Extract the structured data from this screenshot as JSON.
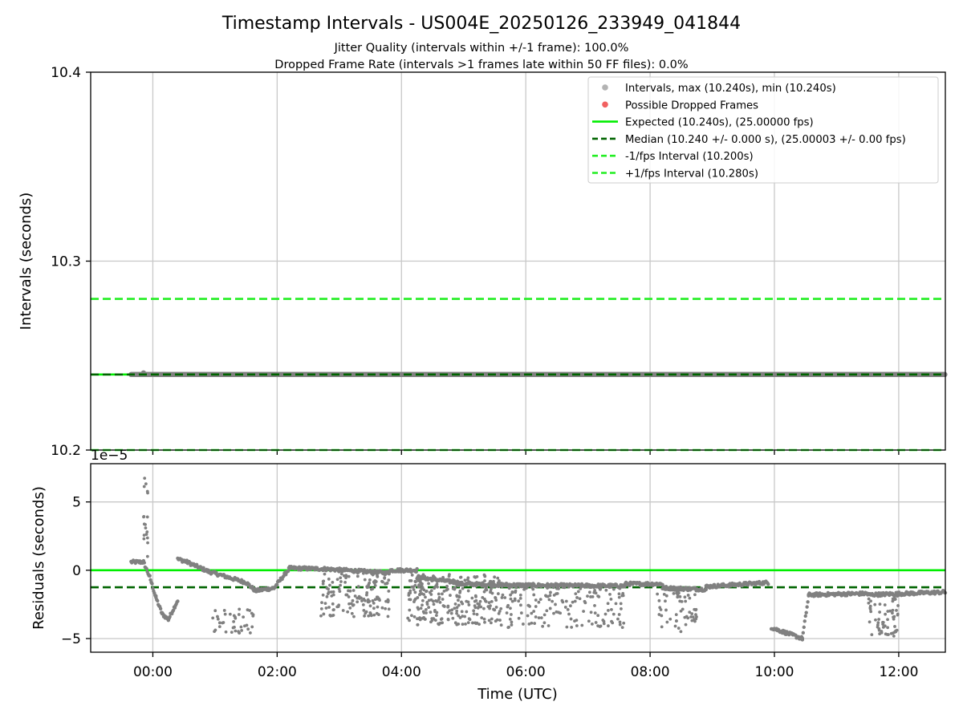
{
  "title": "Timestamp Intervals - US004E_20250126_233949_041844",
  "subtitle_lines": [
    "Jitter Quality (intervals within +/-1 frame): 100.0%",
    "Dropped Frame Rate (intervals >1 frames late within 50 FF files): 0.0%"
  ],
  "xlabel": "Time (UTC)",
  "colors": {
    "points": "#808080",
    "dropped": "#f05050",
    "expected": "#00ee00",
    "median": "#006400",
    "bounds": "#22ee22",
    "grid": "#c8c8c8"
  },
  "chart_data": [
    {
      "type": "scatter",
      "panel": "intervals",
      "ylabel": "Intervals (seconds)",
      "ylim": [
        10.2,
        10.4
      ],
      "yticks": [
        10.2,
        10.3,
        10.4
      ],
      "ytick_labels": [
        "10.2",
        "10.3",
        "10.4"
      ],
      "xlim_hours": [
        -1.0,
        12.75
      ],
      "xticks": [
        "00:00",
        "02:00",
        "04:00",
        "06:00",
        "08:00",
        "10:00",
        "12:00"
      ],
      "xtick_hours": [
        0,
        2,
        4,
        6,
        8,
        10,
        12
      ],
      "grid": true,
      "legend_position": "top-right",
      "series": [
        {
          "name": "Intervals, max (10.240s), min (10.240s)",
          "kind": "points",
          "x_range_hours": [
            -0.35,
            12.75
          ],
          "value": 10.24
        },
        {
          "name": "Possible Dropped Frames",
          "kind": "points",
          "values": []
        },
        {
          "name": "Expected (10.240s), (25.00000 fps)",
          "kind": "hline",
          "value": 10.24
        },
        {
          "name": "Median (10.240 +/- 0.000 s), (25.00003 +/- 0.00 fps)",
          "kind": "hline",
          "value": 10.24
        },
        {
          "name": "-1/fps Interval (10.200s)",
          "kind": "hline",
          "value": 10.2
        },
        {
          "name": "+1/fps Interval (10.280s)",
          "kind": "hline",
          "value": 10.28
        }
      ]
    },
    {
      "type": "scatter",
      "panel": "residuals",
      "ylabel": "Residuals (seconds)",
      "y_scale_label": "1e−5",
      "unit_scale": 1e-05,
      "ylim": [
        -6,
        7.8
      ],
      "yticks": [
        -5,
        0,
        5
      ],
      "ytick_labels": [
        "−5",
        "0",
        "5"
      ],
      "xlim_hours": [
        -1.0,
        12.75
      ],
      "xticks": [
        "00:00",
        "02:00",
        "04:00",
        "06:00",
        "08:00",
        "10:00",
        "12:00"
      ],
      "xtick_hours": [
        0,
        2,
        4,
        6,
        8,
        10,
        12
      ],
      "grid": true,
      "expected_line": 0,
      "median_line": -1.25,
      "baseline_segments": [
        {
          "x": [
            -0.35,
            -0.15
          ],
          "y": [
            0.6,
            0.6
          ]
        },
        {
          "x": [
            -0.15,
            -0.05
          ],
          "y": [
            0.6,
            -0.5
          ]
        },
        {
          "x": [
            -0.05,
            0.05
          ],
          "y": [
            -0.5,
            -2.0
          ]
        },
        {
          "x": [
            0.05,
            0.15
          ],
          "y": [
            -2.0,
            -3.2
          ]
        },
        {
          "x": [
            0.15,
            0.25
          ],
          "y": [
            -3.2,
            -3.6
          ]
        },
        {
          "x": [
            0.25,
            0.4
          ],
          "y": [
            -3.6,
            -2.2
          ]
        },
        {
          "x": [
            0.4,
            0.5
          ],
          "y": [
            0.8,
            0.7
          ]
        },
        {
          "x": [
            0.5,
            0.9
          ],
          "y": [
            0.7,
            -0.1
          ]
        },
        {
          "x": [
            0.9,
            1.5
          ],
          "y": [
            -0.1,
            -0.9
          ]
        },
        {
          "x": [
            1.5,
            1.65
          ],
          "y": [
            -0.9,
            -1.5
          ]
        },
        {
          "x": [
            1.65,
            1.95
          ],
          "y": [
            -1.5,
            -1.3
          ]
        },
        {
          "x": [
            1.95,
            2.2
          ],
          "y": [
            -1.3,
            0.15
          ]
        },
        {
          "x": [
            2.2,
            2.75
          ],
          "y": [
            0.15,
            0.1
          ]
        },
        {
          "x": [
            2.75,
            3.8
          ],
          "y": [
            0.1,
            -0.2
          ]
        },
        {
          "x": [
            3.8,
            4.25
          ],
          "y": [
            0.0,
            0.0
          ]
        },
        {
          "x": [
            4.25,
            4.9
          ],
          "y": [
            -0.5,
            -0.9
          ]
        },
        {
          "x": [
            4.9,
            6.0
          ],
          "y": [
            -1.0,
            -1.1
          ]
        },
        {
          "x": [
            6.0,
            7.6
          ],
          "y": [
            -1.1,
            -1.15
          ]
        },
        {
          "x": [
            7.6,
            8.2
          ],
          "y": [
            -1.0,
            -1.0
          ]
        },
        {
          "x": [
            8.2,
            8.9
          ],
          "y": [
            -1.3,
            -1.4
          ]
        },
        {
          "x": [
            8.9,
            9.9
          ],
          "y": [
            -1.2,
            -0.9
          ]
        },
        {
          "x": [
            9.95,
            10.45
          ],
          "y": [
            -4.2,
            -5.0
          ]
        },
        {
          "x": [
            10.45,
            10.55
          ],
          "y": [
            -5.0,
            -1.9
          ]
        },
        {
          "x": [
            10.55,
            11.5
          ],
          "y": [
            -1.8,
            -1.7
          ]
        },
        {
          "x": [
            11.5,
            12.75
          ],
          "y": [
            -1.8,
            -1.6
          ]
        }
      ],
      "outlier_clusters": [
        {
          "x": [
            -0.15,
            -0.08
          ],
          "y": [
            0.5,
            7.0
          ],
          "n": 18
        },
        {
          "x": [
            0.95,
            1.65
          ],
          "y": [
            -4.6,
            -2.8
          ],
          "n": 40
        },
        {
          "x": [
            2.7,
            3.8
          ],
          "y": [
            -3.4,
            -0.1
          ],
          "n": 140
        },
        {
          "x": [
            4.1,
            5.6
          ],
          "y": [
            -4.0,
            -0.3
          ],
          "n": 260
        },
        {
          "x": [
            5.6,
            7.6
          ],
          "y": [
            -4.2,
            -1.2
          ],
          "n": 160
        },
        {
          "x": [
            8.1,
            8.75
          ],
          "y": [
            -4.5,
            -1.3
          ],
          "n": 60
        },
        {
          "x": [
            11.5,
            12.0
          ],
          "y": [
            -5.0,
            -1.8
          ],
          "n": 60
        }
      ]
    }
  ]
}
